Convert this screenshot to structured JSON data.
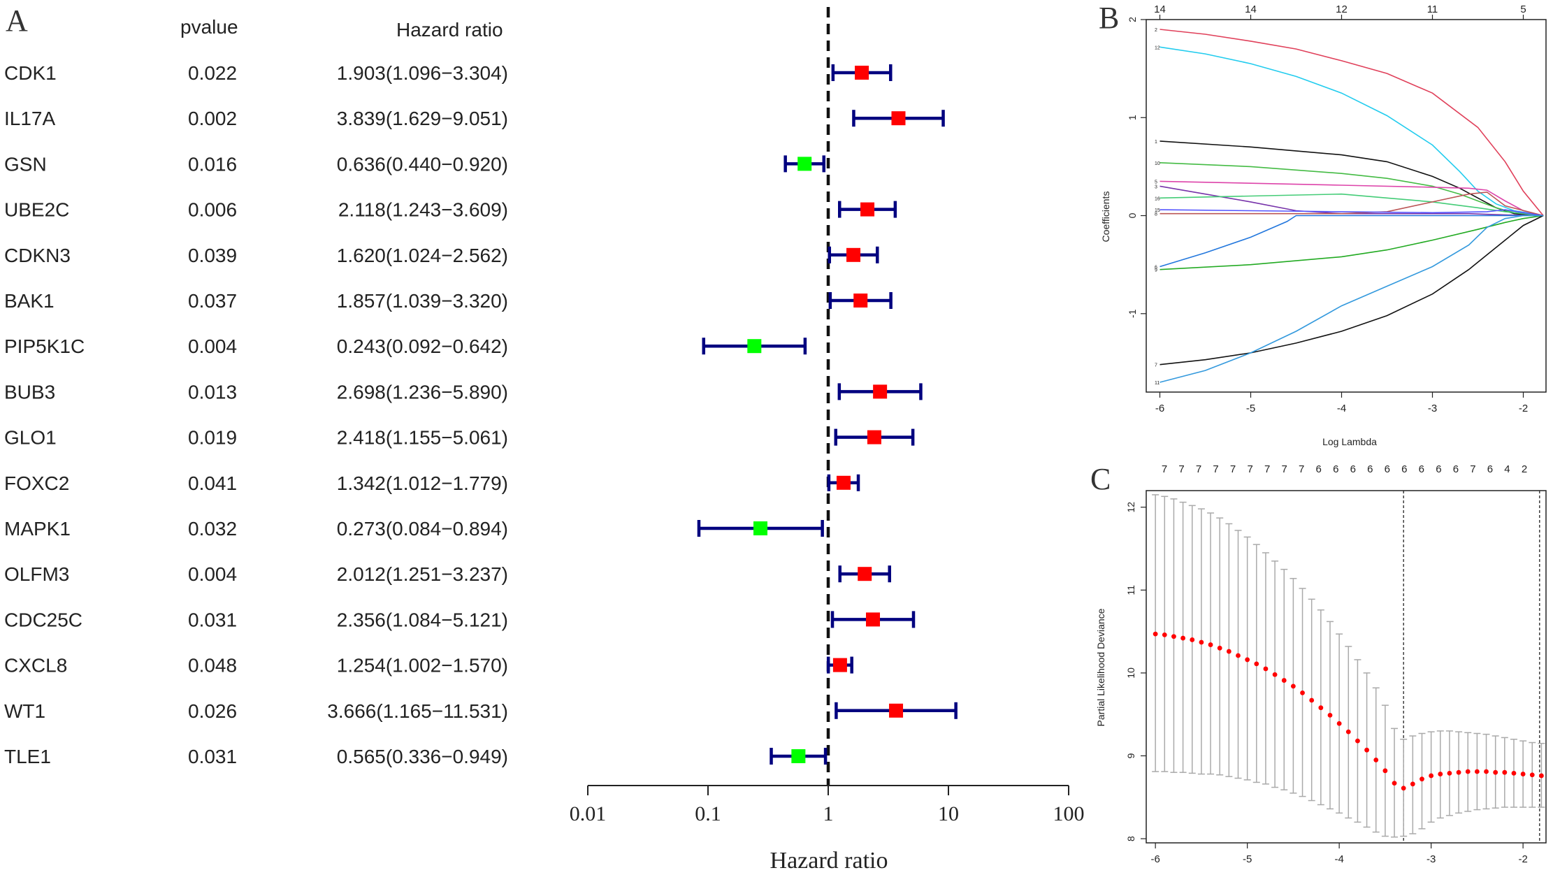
{
  "colors": {
    "ci_line": "#00007f",
    "risk_marker": "#ff0000",
    "protective_marker": "#00ff00",
    "ref_line": "#111111",
    "cv_point": "#ff0000",
    "cv_errorbar": "#aaaaaa"
  },
  "panels": {
    "a_label": "A",
    "b_label": "B",
    "c_label": "C"
  },
  "chart_data": [
    {
      "type": "forest",
      "id": "A",
      "headers": {
        "pvalue": "pvalue",
        "hazard": "Hazard ratio"
      },
      "xlabel": "Hazard ratio",
      "scale": "log10",
      "xlim": [
        0.01,
        100
      ],
      "xticks": [
        "0.01",
        "0.1",
        "1",
        "10",
        "100"
      ],
      "reference": 1,
      "rows": [
        {
          "gene": "CDK1",
          "pvalue": "0.022",
          "hr_text": "1.903(1.096−3.304)",
          "hr": 1.903,
          "lo": 1.096,
          "hi": 3.304
        },
        {
          "gene": "IL17A",
          "pvalue": "0.002",
          "hr_text": "3.839(1.629−9.051)",
          "hr": 3.839,
          "lo": 1.629,
          "hi": 9.051
        },
        {
          "gene": "GSN",
          "pvalue": "0.016",
          "hr_text": "0.636(0.440−0.920)",
          "hr": 0.636,
          "lo": 0.44,
          "hi": 0.92
        },
        {
          "gene": "UBE2C",
          "pvalue": "0.006",
          "hr_text": "2.118(1.243−3.609)",
          "hr": 2.118,
          "lo": 1.243,
          "hi": 3.609
        },
        {
          "gene": "CDKN3",
          "pvalue": "0.039",
          "hr_text": "1.620(1.024−2.562)",
          "hr": 1.62,
          "lo": 1.024,
          "hi": 2.562
        },
        {
          "gene": "BAK1",
          "pvalue": "0.037",
          "hr_text": "1.857(1.039−3.320)",
          "hr": 1.857,
          "lo": 1.039,
          "hi": 3.32
        },
        {
          "gene": "PIP5K1C",
          "pvalue": "0.004",
          "hr_text": "0.243(0.092−0.642)",
          "hr": 0.243,
          "lo": 0.092,
          "hi": 0.642
        },
        {
          "gene": "BUB3",
          "pvalue": "0.013",
          "hr_text": "2.698(1.236−5.890)",
          "hr": 2.698,
          "lo": 1.236,
          "hi": 5.89
        },
        {
          "gene": "GLO1",
          "pvalue": "0.019",
          "hr_text": "2.418(1.155−5.061)",
          "hr": 2.418,
          "lo": 1.155,
          "hi": 5.061
        },
        {
          "gene": "FOXC2",
          "pvalue": "0.041",
          "hr_text": "1.342(1.012−1.779)",
          "hr": 1.342,
          "lo": 1.012,
          "hi": 1.779
        },
        {
          "gene": "MAPK1",
          "pvalue": "0.032",
          "hr_text": "0.273(0.084−0.894)",
          "hr": 0.273,
          "lo": 0.084,
          "hi": 0.894
        },
        {
          "gene": "OLFM3",
          "pvalue": "0.004",
          "hr_text": "2.012(1.251−3.237)",
          "hr": 2.012,
          "lo": 1.251,
          "hi": 3.237
        },
        {
          "gene": "CDC25C",
          "pvalue": "0.031",
          "hr_text": "2.356(1.084−5.121)",
          "hr": 2.356,
          "lo": 1.084,
          "hi": 5.121
        },
        {
          "gene": "CXCL8",
          "pvalue": "0.048",
          "hr_text": "1.254(1.002−1.570)",
          "hr": 1.254,
          "lo": 1.002,
          "hi": 1.57
        },
        {
          "gene": "WT1",
          "pvalue": "0.026",
          "hr_text": "3.666(1.165−11.531)",
          "hr": 3.666,
          "lo": 1.165,
          "hi": 11.531
        },
        {
          "gene": "TLE1",
          "pvalue": "0.031",
          "hr_text": "0.565(0.336−0.949)",
          "hr": 0.565,
          "lo": 0.336,
          "hi": 0.949
        }
      ]
    },
    {
      "type": "line",
      "id": "B",
      "title": "",
      "xlabel": "Log Lambda",
      "ylabel": "Coefficients",
      "xlim": [
        -6.15,
        -1.75
      ],
      "ylim": [
        -1.8,
        2.0
      ],
      "xticks": [
        -6,
        -5,
        -4,
        -3,
        -2
      ],
      "yticks": [
        -1,
        0,
        1,
        2
      ],
      "top_axis": [
        {
          "x": -6.0,
          "label": "14"
        },
        {
          "x": -5.0,
          "label": "14"
        },
        {
          "x": -4.0,
          "label": "12"
        },
        {
          "x": -3.0,
          "label": "11"
        },
        {
          "x": -2.0,
          "label": "5"
        }
      ],
      "end_x": -1.78,
      "series": [
        {
          "name": "2",
          "color": "#e0405a",
          "x": [
            -6,
            -5.5,
            -5,
            -4.5,
            -4,
            -3.5,
            -3,
            -2.5,
            -2.2,
            -2.0,
            -1.78
          ],
          "y": [
            1.9,
            1.85,
            1.78,
            1.7,
            1.58,
            1.45,
            1.25,
            0.9,
            0.55,
            0.25,
            0.0
          ]
        },
        {
          "name": "12",
          "color": "#22ccee",
          "x": [
            -6,
            -5.5,
            -5,
            -4.5,
            -4,
            -3.5,
            -3,
            -2.7,
            -2.5,
            -2.3,
            -2.1,
            -1.9,
            -1.78
          ],
          "y": [
            1.72,
            1.65,
            1.55,
            1.42,
            1.25,
            1.02,
            0.72,
            0.45,
            0.25,
            0.12,
            0.05,
            0.02,
            0.0
          ]
        },
        {
          "name": "1",
          "color": "#111111",
          "x": [
            -6,
            -5,
            -4,
            -3.5,
            -3,
            -2.7,
            -2.5,
            -2.3,
            -2.1,
            -1.9,
            -1.78
          ],
          "y": [
            0.76,
            0.7,
            0.62,
            0.55,
            0.4,
            0.28,
            0.18,
            0.08,
            0.02,
            0.005,
            0.0
          ]
        },
        {
          "name": "10",
          "color": "#44bb44",
          "x": [
            -6,
            -5,
            -4,
            -3.5,
            -3,
            -2.7,
            -2.5,
            -2.3,
            -2.1,
            -1.78
          ],
          "y": [
            0.54,
            0.5,
            0.43,
            0.38,
            0.3,
            0.22,
            0.15,
            0.08,
            0.03,
            0.0
          ]
        },
        {
          "name": "5",
          "color": "#dd44aa",
          "x": [
            -6,
            -5,
            -4,
            -3,
            -2.6,
            -2.4,
            -2.2,
            -2.0,
            -1.78
          ],
          "y": [
            0.35,
            0.33,
            0.31,
            0.29,
            0.28,
            0.26,
            0.15,
            0.05,
            0.0
          ]
        },
        {
          "name": "3",
          "color": "#7733aa",
          "x": [
            -6,
            -5.5,
            -5,
            -4.5,
            -4,
            -3.5,
            -3,
            -2.6,
            -2.3,
            -2.1,
            -1.78
          ],
          "y": [
            0.3,
            0.22,
            0.14,
            0.05,
            0.02,
            0.02,
            0.02,
            0.02,
            0.01,
            0.005,
            0.0
          ]
        },
        {
          "name": "16",
          "color": "#44cc77",
          "x": [
            -6,
            -5,
            -4,
            -3.5,
            -3,
            -2.5,
            -2.2,
            -2.0,
            -1.78
          ],
          "y": [
            0.18,
            0.2,
            0.22,
            0.18,
            0.14,
            0.08,
            0.04,
            0.02,
            0.0
          ]
        },
        {
          "name": "8",
          "color": "#bb5555",
          "x": [
            -6,
            -5,
            -4.5,
            -4.0,
            -3.5,
            -3.0,
            -2.6,
            -2.4,
            -2.2,
            -1.78
          ],
          "y": [
            0.02,
            0.02,
            0.02,
            0.02,
            0.04,
            0.14,
            0.22,
            0.24,
            0.1,
            0.0
          ]
        },
        {
          "name": "15",
          "color": "#5555ff",
          "x": [
            -6,
            -5,
            -4,
            -3,
            -2.4,
            -2.2,
            -2.0,
            -1.78
          ],
          "y": [
            0.06,
            0.05,
            0.04,
            0.03,
            0.04,
            0.06,
            0.03,
            0.0
          ]
        },
        {
          "name": "6",
          "color": "#2277dd",
          "x": [
            -6,
            -5.5,
            -5,
            -4.6,
            -4.5,
            -4,
            -3,
            -2.4,
            -2.2,
            -2.0,
            -1.78
          ],
          "y": [
            -0.52,
            -0.38,
            -0.22,
            -0.06,
            0.0,
            0.0,
            0.0,
            0.0,
            0.0,
            0.0,
            0.0
          ]
        },
        {
          "name": "9",
          "color": "#22aa22",
          "x": [
            -6,
            -5,
            -4,
            -3.5,
            -3,
            -2.5,
            -2.2,
            -2.0,
            -1.78
          ],
          "y": [
            -0.55,
            -0.5,
            -0.42,
            -0.35,
            -0.25,
            -0.14,
            -0.07,
            -0.03,
            0.0
          ]
        },
        {
          "name": "7",
          "color": "#111111",
          "x": [
            -6,
            -5.5,
            -5,
            -4.5,
            -4,
            -3.5,
            -3,
            -2.6,
            -2.4,
            -2.2,
            -2.0,
            -1.78
          ],
          "y": [
            -1.52,
            -1.47,
            -1.4,
            -1.3,
            -1.18,
            -1.02,
            -0.8,
            -0.55,
            -0.4,
            -0.25,
            -0.1,
            0.0
          ]
        },
        {
          "name": "11",
          "color": "#3399dd",
          "x": [
            -6,
            -5.5,
            -5,
            -4.5,
            -4,
            -3.5,
            -3,
            -2.6,
            -2.4,
            -2.2,
            -2.0,
            -1.78
          ],
          "y": [
            -1.7,
            -1.58,
            -1.4,
            -1.18,
            -0.92,
            -0.72,
            -0.52,
            -0.3,
            -0.12,
            -0.03,
            0.0,
            0.0
          ]
        }
      ]
    },
    {
      "type": "scatter",
      "id": "C",
      "title": "",
      "xlabel": "",
      "ylabel": "Partial Likelihood Deviance",
      "xlim": [
        -6.1,
        -1.75
      ],
      "ylim": [
        7.95,
        12.2
      ],
      "xticks": [
        -6,
        -5,
        -4,
        -3,
        -2
      ],
      "yticks": [
        8,
        9,
        10,
        11,
        12
      ],
      "top_counts": [
        "7",
        "7",
        "7",
        "7",
        "7",
        "7",
        "7",
        "7",
        "7",
        "6",
        "6",
        "6",
        "6",
        "6",
        "6",
        "6",
        "6",
        "6",
        "7",
        "6",
        "4",
        "2"
      ],
      "vlines": [
        -3.3,
        -1.82
      ],
      "points": [
        {
          "x": -6.0,
          "y": 10.47,
          "lo": 8.81,
          "hi": 12.15
        },
        {
          "x": -5.9,
          "y": 10.46,
          "lo": 8.81,
          "hi": 12.13
        },
        {
          "x": -5.8,
          "y": 10.44,
          "lo": 8.8,
          "hi": 12.1
        },
        {
          "x": -5.7,
          "y": 10.42,
          "lo": 8.8,
          "hi": 12.06
        },
        {
          "x": -5.6,
          "y": 10.4,
          "lo": 8.79,
          "hi": 12.02
        },
        {
          "x": -5.5,
          "y": 10.37,
          "lo": 8.78,
          "hi": 11.98
        },
        {
          "x": -5.4,
          "y": 10.34,
          "lo": 8.78,
          "hi": 11.93
        },
        {
          "x": -5.3,
          "y": 10.3,
          "lo": 8.77,
          "hi": 11.87
        },
        {
          "x": -5.2,
          "y": 10.26,
          "lo": 8.75,
          "hi": 11.8
        },
        {
          "x": -5.1,
          "y": 10.21,
          "lo": 8.73,
          "hi": 11.72
        },
        {
          "x": -5.0,
          "y": 10.16,
          "lo": 8.71,
          "hi": 11.64
        },
        {
          "x": -4.9,
          "y": 10.11,
          "lo": 8.68,
          "hi": 11.55
        },
        {
          "x": -4.8,
          "y": 10.05,
          "lo": 8.66,
          "hi": 11.45
        },
        {
          "x": -4.7,
          "y": 9.98,
          "lo": 8.62,
          "hi": 11.35
        },
        {
          "x": -4.6,
          "y": 9.91,
          "lo": 8.59,
          "hi": 11.25
        },
        {
          "x": -4.5,
          "y": 9.84,
          "lo": 8.55,
          "hi": 11.14
        },
        {
          "x": -4.4,
          "y": 9.76,
          "lo": 8.51,
          "hi": 11.02
        },
        {
          "x": -4.3,
          "y": 9.67,
          "lo": 8.46,
          "hi": 10.89
        },
        {
          "x": -4.2,
          "y": 9.58,
          "lo": 8.41,
          "hi": 10.76
        },
        {
          "x": -4.1,
          "y": 9.49,
          "lo": 8.36,
          "hi": 10.62
        },
        {
          "x": -4.0,
          "y": 9.39,
          "lo": 8.31,
          "hi": 10.47
        },
        {
          "x": -3.9,
          "y": 9.29,
          "lo": 8.25,
          "hi": 10.32
        },
        {
          "x": -3.8,
          "y": 9.18,
          "lo": 8.2,
          "hi": 10.16
        },
        {
          "x": -3.7,
          "y": 9.07,
          "lo": 8.14,
          "hi": 10.0
        },
        {
          "x": -3.6,
          "y": 8.95,
          "lo": 8.08,
          "hi": 9.82
        },
        {
          "x": -3.5,
          "y": 8.82,
          "lo": 8.03,
          "hi": 9.61
        },
        {
          "x": -3.4,
          "y": 8.67,
          "lo": 8.02,
          "hi": 9.33
        },
        {
          "x": -3.3,
          "y": 8.61,
          "lo": 8.03,
          "hi": 9.2
        },
        {
          "x": -3.2,
          "y": 8.66,
          "lo": 8.06,
          "hi": 9.24
        },
        {
          "x": -3.1,
          "y": 8.72,
          "lo": 8.12,
          "hi": 9.27
        },
        {
          "x": -3.0,
          "y": 8.76,
          "lo": 8.2,
          "hi": 9.29
        },
        {
          "x": -2.9,
          "y": 8.78,
          "lo": 8.25,
          "hi": 9.3
        },
        {
          "x": -2.8,
          "y": 8.79,
          "lo": 8.28,
          "hi": 9.3
        },
        {
          "x": -2.7,
          "y": 8.8,
          "lo": 8.31,
          "hi": 9.29
        },
        {
          "x": -2.6,
          "y": 8.81,
          "lo": 8.33,
          "hi": 9.28
        },
        {
          "x": -2.5,
          "y": 8.81,
          "lo": 8.35,
          "hi": 9.27
        },
        {
          "x": -2.4,
          "y": 8.81,
          "lo": 8.36,
          "hi": 9.26
        },
        {
          "x": -2.3,
          "y": 8.8,
          "lo": 8.37,
          "hi": 9.24
        },
        {
          "x": -2.2,
          "y": 8.8,
          "lo": 8.38,
          "hi": 9.22
        },
        {
          "x": -2.1,
          "y": 8.79,
          "lo": 8.38,
          "hi": 9.2
        },
        {
          "x": -2.0,
          "y": 8.78,
          "lo": 8.38,
          "hi": 9.18
        },
        {
          "x": -1.9,
          "y": 8.77,
          "lo": 8.38,
          "hi": 9.16
        },
        {
          "x": -1.8,
          "y": 8.76,
          "lo": 8.38,
          "hi": 9.15
        }
      ]
    }
  ]
}
